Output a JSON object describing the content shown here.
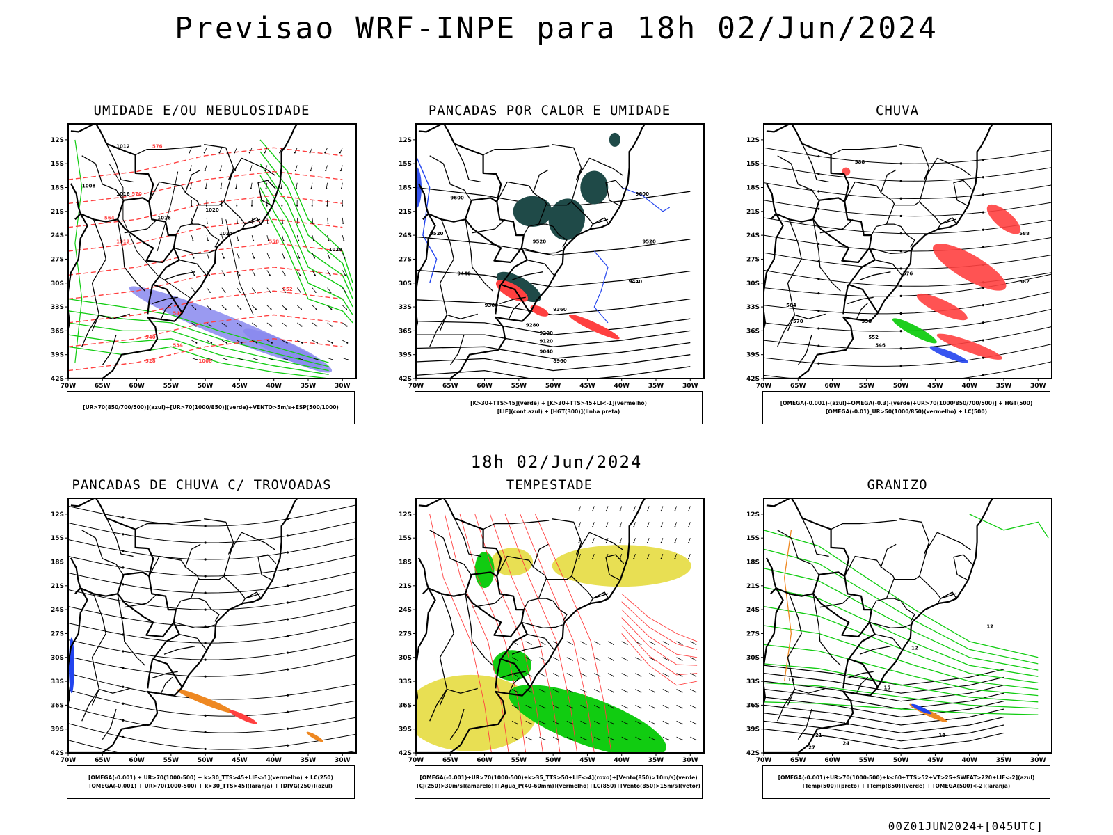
{
  "header": {
    "title": "Previsao WRF-INPE  para 18h 02/Jun/2024"
  },
  "section_label": "18h 02/Jun/2024",
  "run_info": "00Z01JUN2024+[045UTC]",
  "axes": {
    "lat_labels": [
      "12S",
      "15S",
      "18S",
      "21S",
      "24S",
      "27S",
      "30S",
      "33S",
      "36S",
      "39S",
      "42S"
    ],
    "lon_labels": [
      "70W",
      "65W",
      "60W",
      "55W",
      "50W",
      "45W",
      "40W",
      "35W",
      "30W"
    ]
  },
  "colors": {
    "red": "#ff4040",
    "green": "#11cc11",
    "blue": "#2244ee",
    "lavender": "#8888ee",
    "darkteal": "#1f4a48",
    "yellow": "#e6dc40",
    "orange": "#ee8822",
    "black": "#000000"
  },
  "panels": [
    {
      "id": "umidade",
      "title": "UMIDADE E/OU NEBULOSIDADE",
      "legend_lines": [
        "[UR>70(850/700/500)](azul)+[UR>70(1000/850)](verde)+VENTO>5m/s+ESP(500/1000)"
      ],
      "contour_labels": [
        "1012",
        "1016",
        "1008",
        "1020",
        "1024",
        "1028",
        "1016",
        "1012",
        "1008",
        "576",
        "570",
        "564",
        "558",
        "552",
        "546",
        "540",
        "534",
        "528"
      ]
    },
    {
      "id": "pancadas-calor",
      "title": "PANCADAS POR CALOR E UMIDADE",
      "legend_lines": [
        "[K>30+TTS>45](verde) + [K>30+TTS>45+LI<-1](vermelho)",
        "[LIF](cont.azul) + [HGT(300)](linha preta)"
      ],
      "contour_labels": [
        "9600",
        "9600",
        "9520",
        "9520",
        "9520",
        "9440",
        "9440",
        "9360",
        "9360",
        "9280",
        "9200",
        "9120",
        "9040",
        "8960"
      ]
    },
    {
      "id": "chuva",
      "title": "CHUVA",
      "legend_lines": [
        "[OMEGA(-0.001)-(azul)+OMEGA(-0.3)-(verde)+UR>70(1000/850/700/500)] + HGT(500)",
        "[OMEGA(-0.01)_UR>50(1000/850)(vermelho) + LC(500)"
      ],
      "contour_labels": [
        "588",
        "588",
        "582",
        "576",
        "570",
        "564",
        "558",
        "552",
        "546"
      ]
    },
    {
      "id": "pancadas-trovoadas",
      "title": "PANCADAS DE CHUVA C/ TROVOADAS",
      "legend_lines": [
        "[OMEGA(-0.001) + UR>70(1000-500) + k>30_TTS>45+LIF<-1](vermelho) + LC(250)",
        "[OMEGA(-0.001) + UR>70(1000-500) + k>30_TTS>45](laranja) + [DIVG(250)](azul)"
      ],
      "contour_labels": []
    },
    {
      "id": "tempestade",
      "title": "TEMPESTADE",
      "legend_lines": [
        "[OMEGA(-0.001)+UR>70(1000-500)+k>35_TTS>50+LIF<-4](roxo)+[Vento(850)>10m/s](verde)",
        "[CJ(250)>30m/s](amarelo)+[Agua_P(40-60mm)](vermelho)+LC(850)+[Vento(850)>15m/s](vetor)"
      ],
      "contour_labels": []
    },
    {
      "id": "granizo",
      "title": "GRANIZO",
      "legend_lines": [
        "[OMEGA(-0.001)+UR>70(1000-500)+k<60+TTS>52+VT>25+SWEAT>220+LIF<-2](azul)",
        "[Temp(500)](preto) + [Temp(850)](verde) + [OMEGA(500)<-2](laranja)"
      ],
      "contour_labels": [
        "12",
        "12",
        "15",
        "18",
        "21",
        "24",
        "27",
        "15",
        "18"
      ]
    }
  ]
}
